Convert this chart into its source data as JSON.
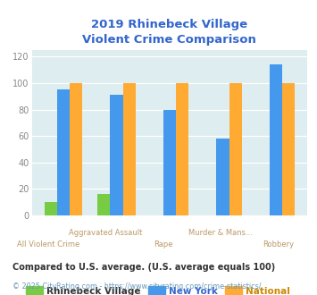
{
  "title": "2019 Rhinebeck Village\nViolent Crime Comparison",
  "cat_top": [
    "",
    "Aggravated Assault",
    "",
    "Murder & Mans...",
    ""
  ],
  "cat_bot": [
    "All Violent Crime",
    "",
    "Rape",
    "",
    "Robbery"
  ],
  "rhinebeck": [
    10,
    16,
    0,
    0,
    0
  ],
  "new_york": [
    95,
    91,
    80,
    58,
    114
  ],
  "national": [
    100,
    100,
    100,
    100,
    100
  ],
  "colors": {
    "rhinebeck": "#77cc44",
    "new_york": "#4499ee",
    "national": "#ffaa33"
  },
  "ylim": [
    0,
    125
  ],
  "yticks": [
    0,
    20,
    40,
    60,
    80,
    100,
    120
  ],
  "legend_labels": [
    "Rhinebeck Village",
    "New York",
    "National"
  ],
  "footnote1": "Compared to U.S. average. (U.S. average equals 100)",
  "footnote2": "© 2025 CityRating.com - https://www.cityrating.com/crime-statistics/",
  "title_color": "#3366cc",
  "bg_color": "#deedf0",
  "xtick_color_top": "#bb9966",
  "xtick_color_bot": "#bb9966",
  "ytick_color": "#888888",
  "footnote1_color": "#333333",
  "footnote2_color": "#6699bb",
  "legend_text_colors": [
    "#333333",
    "#3366cc",
    "#cc8800"
  ]
}
